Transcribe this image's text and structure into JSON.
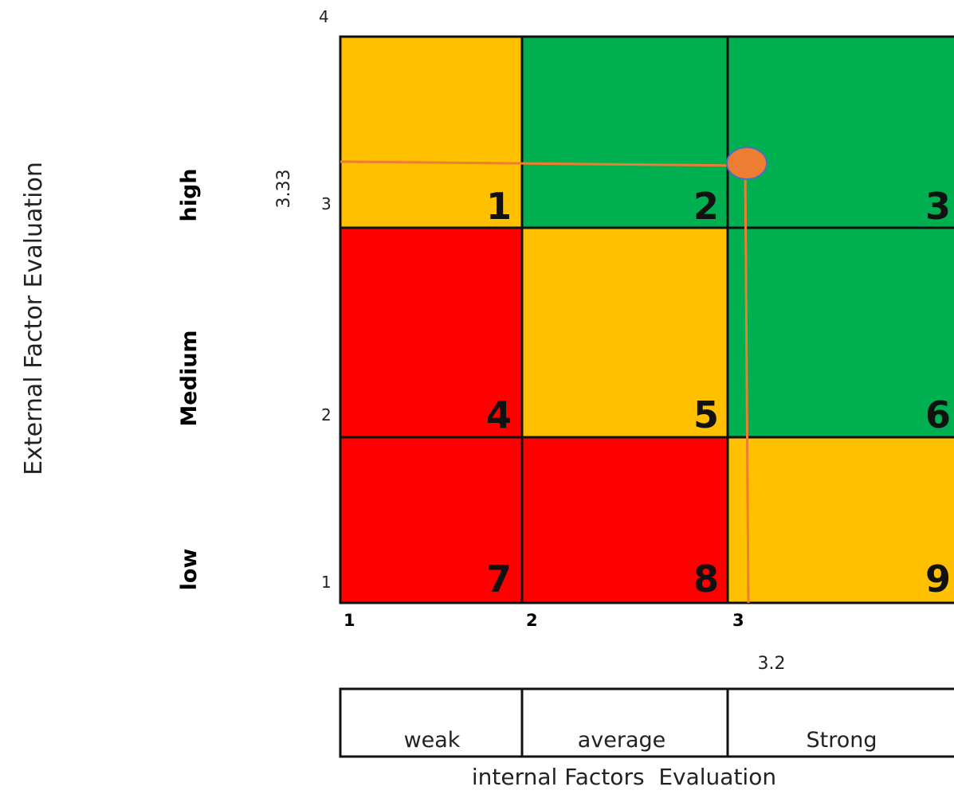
{
  "y_axis": {
    "title": "External Factor Evaluation",
    "levels": [
      "high",
      "Medium",
      "low"
    ],
    "ticks": [
      "4",
      "3",
      "2",
      "1"
    ]
  },
  "x_axis": {
    "title": "internal Factors  Evaluation",
    "ticks": [
      "1",
      "2",
      "3"
    ],
    "categories": [
      "weak",
      "average",
      "Strong"
    ]
  },
  "matrix": {
    "cells": [
      {
        "num": "1",
        "color": "#FFC000"
      },
      {
        "num": "2",
        "color": "#00B050"
      },
      {
        "num": "3",
        "color": "#00B050"
      },
      {
        "num": "4",
        "color": "#FF0000"
      },
      {
        "num": "5",
        "color": "#FFC000"
      },
      {
        "num": "6",
        "color": "#00B050"
      },
      {
        "num": "7",
        "color": "#FF0000"
      },
      {
        "num": "8",
        "color": "#FF0000"
      },
      {
        "num": "9",
        "color": "#FFC000"
      }
    ]
  },
  "marker": {
    "ife_value": "3.2",
    "efe_value": "3.33",
    "color": "#ED7D31",
    "line_color": "#ED7D31"
  }
}
